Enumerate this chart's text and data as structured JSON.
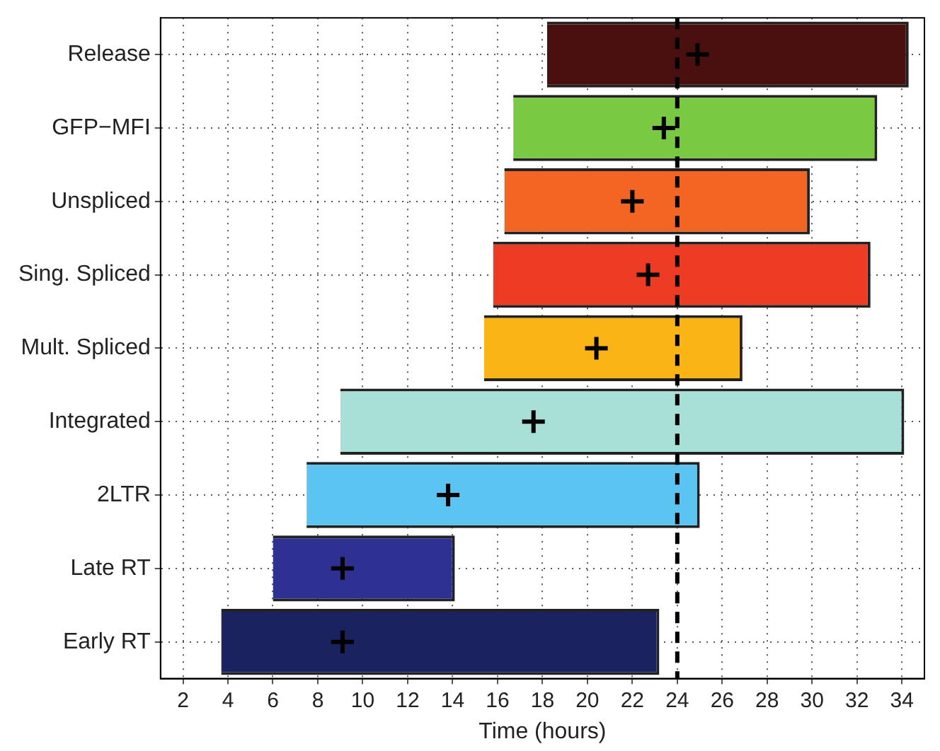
{
  "chart_data": {
    "type": "bar",
    "orientation": "horizontal",
    "xlabel": "Time (hours)",
    "categories": [
      "Release",
      "GFP−MFI",
      "Unspliced",
      "Sing. Spliced",
      "Mult. Spliced",
      "Integrated",
      "2LTR",
      "Late RT",
      "Early RT"
    ],
    "series": [
      {
        "base": [
          18.2,
          16.7,
          16.3,
          15.8,
          15.4,
          9.0,
          7.5,
          6.0,
          3.7
        ],
        "values": [
          16.1,
          16.2,
          13.6,
          16.8,
          11.5,
          25.1,
          17.5,
          8.1,
          19.5
        ],
        "colors": [
          "#4a0f0f",
          "#7ac943",
          "#f26522",
          "#ee3b24",
          "#fbb416",
          "#a8e0d8",
          "#5bc4f1",
          "#2e3192",
          "#1b2260"
        ]
      },
      {
        "type": "scatter",
        "x": [
          "Release",
          "GFP−MFI",
          "Unspliced",
          "Sing. Spliced",
          "Mult. Spliced",
          "Integrated",
          "2LTR",
          "Late RT",
          "Early RT"
        ],
        "values": [
          24.9,
          23.4,
          22.0,
          22.7,
          20.4,
          17.6,
          13.8,
          9.1,
          9.1
        ],
        "color": "#000000",
        "marker": "cross"
      }
    ],
    "xlim": [
      1,
      35
    ],
    "xticks": [
      2,
      4,
      6,
      8,
      10,
      12,
      14,
      16,
      18,
      20,
      22,
      24,
      26,
      28,
      30,
      32,
      34
    ],
    "ref_lines": [
      {
        "axis": "x",
        "value": 24,
        "color": "#000000",
        "line_style": "dashed"
      }
    ],
    "grid": true,
    "legend": false
  }
}
